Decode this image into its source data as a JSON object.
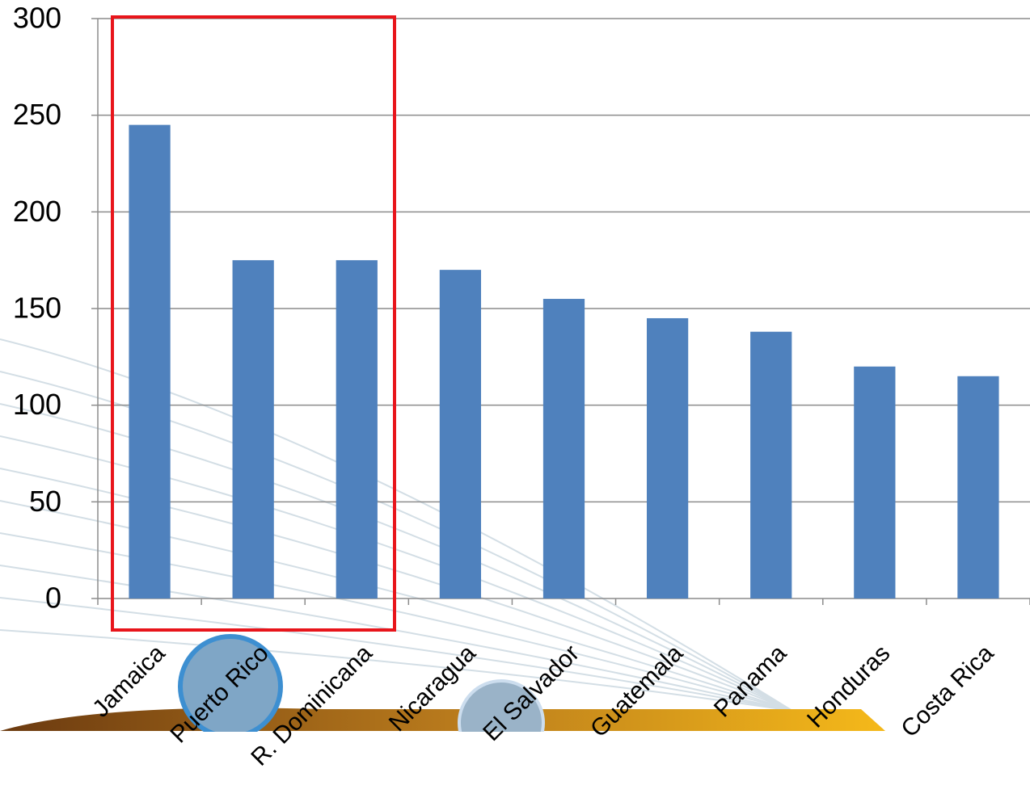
{
  "chart_data": {
    "type": "bar",
    "categories": [
      "Jamaica",
      "Puerto Rico",
      "R. Dominicana",
      "Nicaragua",
      "El Salvador",
      "Guatemala",
      "Panama",
      "Honduras",
      "Costa Rica"
    ],
    "values": [
      245,
      175,
      175,
      170,
      155,
      145,
      138,
      120,
      115
    ],
    "color": "#4f81bd",
    "ylim": [
      0,
      300
    ],
    "yticks": [
      0,
      50,
      100,
      150,
      200,
      250,
      300
    ],
    "grid": true
  }
}
